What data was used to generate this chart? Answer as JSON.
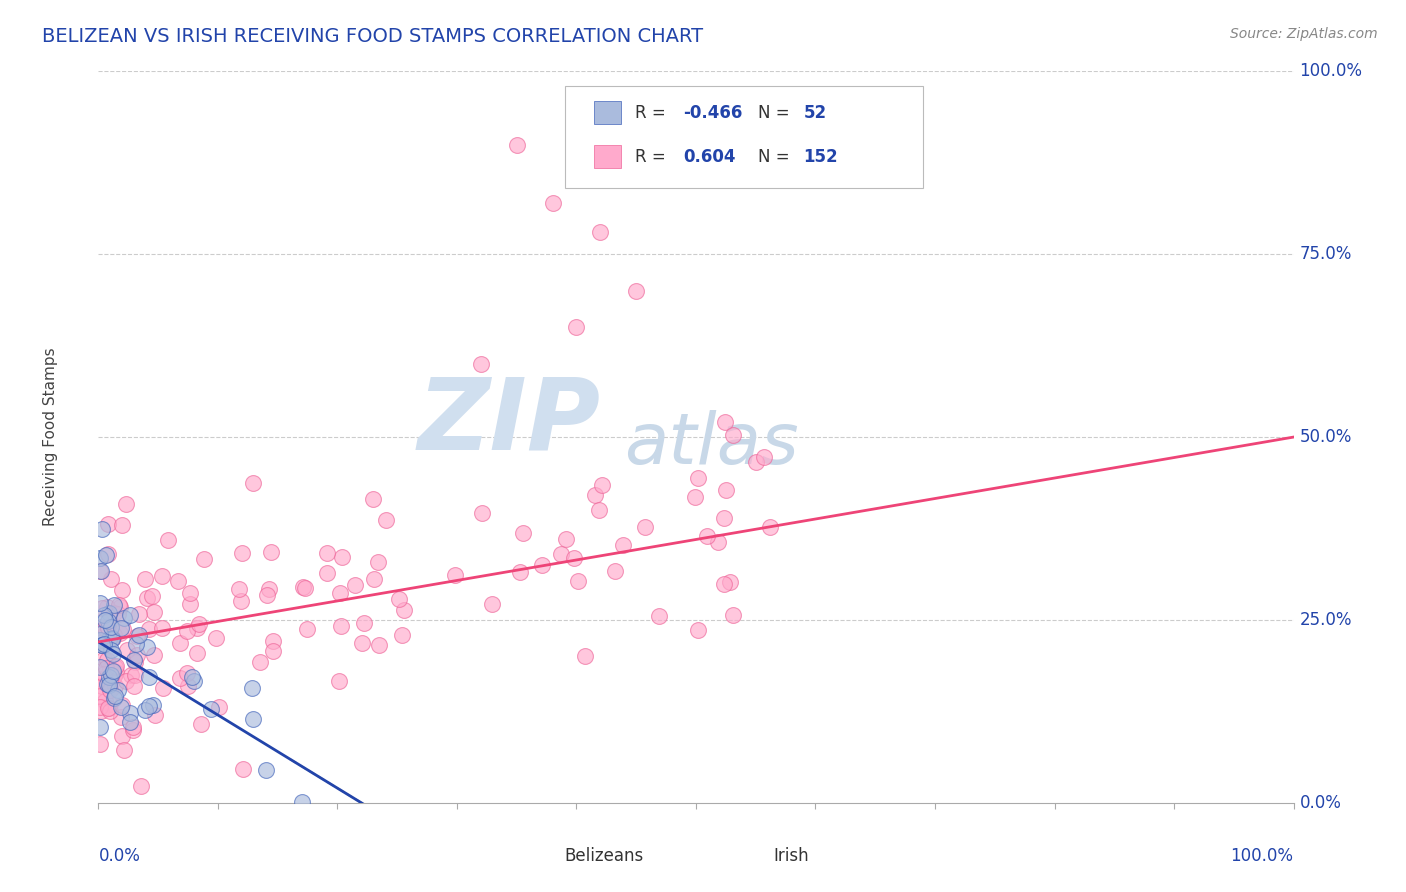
{
  "title": "BELIZEAN VS IRISH RECEIVING FOOD STAMPS CORRELATION CHART",
  "source_text": "Source: ZipAtlas.com",
  "ylabel": "Receiving Food Stamps",
  "xlim": [
    0,
    1
  ],
  "ylim": [
    0,
    1.0
  ],
  "y_ticks_right": [
    0.0,
    0.25,
    0.5,
    0.75,
    1.0
  ],
  "y_tick_labels_right": [
    "0.0%",
    "25.0%",
    "50.0%",
    "75.0%",
    "100.0%"
  ],
  "blue_fill": "#AABBDD",
  "blue_edge": "#4466BB",
  "pink_fill": "#FFAACC",
  "pink_edge": "#EE6699",
  "blue_line_color": "#2244AA",
  "pink_line_color": "#EE4477",
  "title_color": "#2244AA",
  "source_color": "#888888",
  "background_color": "#FFFFFF",
  "grid_color": "#CCCCCC",
  "legend_text_color": "#2244AA",
  "r_values_color": "#2244AA",
  "axis_label_color": "#2244AA",
  "ylabel_color": "#444444"
}
